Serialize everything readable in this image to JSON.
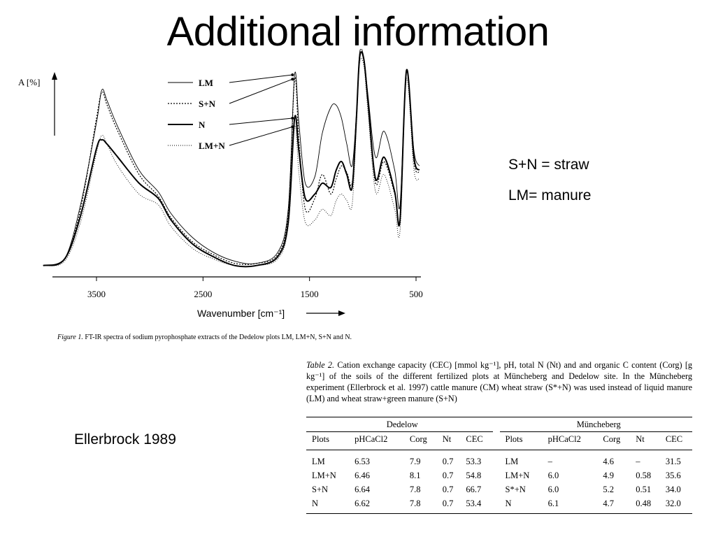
{
  "title": "Additional information",
  "notes": {
    "straw": "S+N = straw",
    "manure": "LM= manure",
    "citation": "Ellerbrock 1989"
  },
  "figure": {
    "caption_label": "Figure 1.",
    "caption_text": "FT-IR spectra of sodium pyrophosphate extracts of the Dedelow plots LM, LM+N, S+N and N."
  },
  "chart_data": {
    "type": "line",
    "title": "",
    "xlabel": "Wavenumber [cm⁻¹]",
    "ylabel": "A [%]",
    "x_ticks": [
      "3500",
      "2500",
      "1500",
      "500"
    ],
    "xlim": [
      4000,
      450
    ],
    "x_reversed": true,
    "legend_position": "top-center",
    "series": [
      {
        "name": "LM",
        "style": "thin-solid",
        "points": [
          [
            4000,
            2
          ],
          [
            3800,
            5
          ],
          [
            3650,
            30
          ],
          [
            3500,
            68
          ],
          [
            3450,
            83
          ],
          [
            3400,
            78
          ],
          [
            3300,
            66
          ],
          [
            3100,
            46
          ],
          [
            2920,
            36
          ],
          [
            2800,
            26
          ],
          [
            2600,
            15
          ],
          [
            2400,
            8
          ],
          [
            2200,
            4
          ],
          [
            2000,
            3
          ],
          [
            1800,
            8
          ],
          [
            1700,
            28
          ],
          [
            1640,
            90
          ],
          [
            1600,
            68
          ],
          [
            1540,
            40
          ],
          [
            1450,
            43
          ],
          [
            1380,
            63
          ],
          [
            1300,
            75
          ],
          [
            1250,
            76
          ],
          [
            1200,
            70
          ],
          [
            1150,
            58
          ],
          [
            1100,
            48
          ],
          [
            1060,
            72
          ],
          [
            1030,
            100
          ],
          [
            990,
            98
          ],
          [
            950,
            80
          ],
          [
            880,
            52
          ],
          [
            800,
            64
          ],
          [
            700,
            46
          ],
          [
            650,
            30
          ],
          [
            590,
            92
          ],
          [
            520,
            55
          ],
          [
            470,
            48
          ]
        ]
      },
      {
        "name": "S+N",
        "style": "dotted",
        "points": [
          [
            4000,
            2
          ],
          [
            3800,
            5
          ],
          [
            3650,
            28
          ],
          [
            3500,
            70
          ],
          [
            3450,
            82
          ],
          [
            3400,
            76
          ],
          [
            3300,
            64
          ],
          [
            3100,
            44
          ],
          [
            2920,
            34
          ],
          [
            2800,
            24
          ],
          [
            2600,
            13
          ],
          [
            2400,
            7
          ],
          [
            2200,
            3
          ],
          [
            2000,
            3
          ],
          [
            1800,
            7
          ],
          [
            1700,
            26
          ],
          [
            1640,
            88
          ],
          [
            1600,
            60
          ],
          [
            1540,
            28
          ],
          [
            1450,
            33
          ],
          [
            1380,
            44
          ],
          [
            1300,
            35
          ],
          [
            1250,
            42
          ],
          [
            1200,
            48
          ],
          [
            1150,
            45
          ],
          [
            1100,
            40
          ],
          [
            1060,
            70
          ],
          [
            1030,
            98
          ],
          [
            990,
            97
          ],
          [
            950,
            76
          ],
          [
            880,
            40
          ],
          [
            800,
            50
          ],
          [
            700,
            35
          ],
          [
            650,
            24
          ],
          [
            590,
            92
          ],
          [
            520,
            50
          ],
          [
            470,
            45
          ]
        ]
      },
      {
        "name": "N",
        "style": "thick-solid",
        "points": [
          [
            4000,
            2
          ],
          [
            3800,
            5
          ],
          [
            3650,
            25
          ],
          [
            3500,
            56
          ],
          [
            3450,
            60
          ],
          [
            3400,
            58
          ],
          [
            3300,
            52
          ],
          [
            3100,
            40
          ],
          [
            2920,
            33
          ],
          [
            2800,
            23
          ],
          [
            2600,
            12
          ],
          [
            2400,
            6
          ],
          [
            2200,
            2
          ],
          [
            2000,
            2
          ],
          [
            1800,
            6
          ],
          [
            1700,
            22
          ],
          [
            1640,
            70
          ],
          [
            1600,
            55
          ],
          [
            1540,
            33
          ],
          [
            1450,
            35
          ],
          [
            1380,
            40
          ],
          [
            1300,
            38
          ],
          [
            1250,
            46
          ],
          [
            1200,
            50
          ],
          [
            1150,
            44
          ],
          [
            1100,
            38
          ],
          [
            1060,
            70
          ],
          [
            1030,
            98
          ],
          [
            990,
            97
          ],
          [
            950,
            77
          ],
          [
            880,
            42
          ],
          [
            800,
            52
          ],
          [
            700,
            36
          ],
          [
            650,
            23
          ],
          [
            590,
            92
          ],
          [
            520,
            52
          ],
          [
            470,
            46
          ]
        ]
      },
      {
        "name": "LM+N",
        "style": "fine-dotted",
        "points": [
          [
            4000,
            2
          ],
          [
            3800,
            4
          ],
          [
            3650,
            22
          ],
          [
            3500,
            54
          ],
          [
            3450,
            62
          ],
          [
            3400,
            58
          ],
          [
            3300,
            48
          ],
          [
            3100,
            35
          ],
          [
            2920,
            30
          ],
          [
            2800,
            20
          ],
          [
            2600,
            10
          ],
          [
            2400,
            5
          ],
          [
            2200,
            2
          ],
          [
            2000,
            2
          ],
          [
            1800,
            5
          ],
          [
            1700,
            20
          ],
          [
            1640,
            66
          ],
          [
            1600,
            45
          ],
          [
            1540,
            22
          ],
          [
            1450,
            23
          ],
          [
            1380,
            28
          ],
          [
            1300,
            25
          ],
          [
            1250,
            32
          ],
          [
            1200,
            35
          ],
          [
            1150,
            32
          ],
          [
            1100,
            30
          ],
          [
            1060,
            66
          ],
          [
            1030,
            95
          ],
          [
            990,
            94
          ],
          [
            950,
            72
          ],
          [
            880,
            36
          ],
          [
            800,
            44
          ],
          [
            700,
            28
          ],
          [
            650,
            18
          ],
          [
            590,
            88
          ],
          [
            520,
            46
          ],
          [
            470,
            42
          ]
        ]
      }
    ]
  },
  "table": {
    "caption": {
      "label": "Table 2.",
      "text": "Cation exchange capacity (CEC) [mmol kg⁻¹], pH, total N (Nt) and and organic C content (Corg) [g kg⁻¹] of the soils of the different fertilized plots at Müncheberg and Dedelow site. In the Müncheberg experiment (Ellerbrock et al. 1997) cattle manure (CM) wheat straw (S*+N) was used instead of liquid manure (LM) and wheat straw+green manure (S+N)"
    },
    "groups": [
      "Dedelow",
      "Müncheberg"
    ],
    "headers": [
      "Plots",
      "pHCaCl2",
      "Corg",
      "Nt",
      "CEC"
    ],
    "dedelow": [
      [
        "LM",
        "6.53",
        "7.9",
        "0.7",
        "53.3"
      ],
      [
        "LM+N",
        "6.46",
        "8.1",
        "0.7",
        "54.8"
      ],
      [
        "S+N",
        "6.64",
        "7.8",
        "0.7",
        "66.7"
      ],
      [
        "N",
        "6.62",
        "7.8",
        "0.7",
        "53.4"
      ]
    ],
    "muencheberg": [
      [
        "LM",
        "–",
        "4.6",
        "–",
        "31.5"
      ],
      [
        "LM+N",
        "6.0",
        "4.9",
        "0.58",
        "35.6"
      ],
      [
        "S*+N",
        "6.0",
        "5.2",
        "0.51",
        "34.0"
      ],
      [
        "N",
        "6.1",
        "4.7",
        "0.48",
        "32.0"
      ]
    ]
  }
}
